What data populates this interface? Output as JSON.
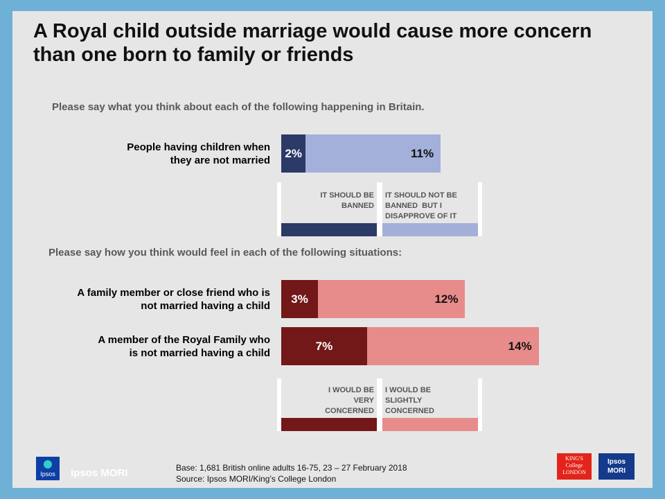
{
  "title": "A Royal child outside marriage would cause more concern than one born to family or friends",
  "chart_data": [
    {
      "type": "bar",
      "orientation": "horizontal",
      "stacked": true,
      "question": "Please say what you think about each of the following happening in Britain.",
      "categories": [
        "People having children when\nthey are not married"
      ],
      "series": [
        {
          "name": "IT SHOULD BE BANNED",
          "values": [
            2
          ],
          "labels": [
            "2%"
          ],
          "color": "#2b3a66"
        },
        {
          "name": "IT SHOULD NOT BE BANNED  BUT I DISAPPROVE OF IT",
          "values": [
            11
          ],
          "labels": [
            "11%"
          ],
          "color": "#a2b0da"
        }
      ],
      "legend": {
        "items": [
          "IT SHOULD BE\nBANNED",
          "IT SHOULD NOT BE\nBANNED  BUT I\nDISAPPROVE OF IT"
        ],
        "placement": "bottom"
      }
    },
    {
      "type": "bar",
      "orientation": "horizontal",
      "stacked": true,
      "question": "Please say how you think would feel in each of the following situations:",
      "categories": [
        "A family member or close friend who is\nnot married having a child",
        "A member of the Royal Family who\nis not married having a child"
      ],
      "series": [
        {
          "name": "I WOULD BE VERY CONCERNED",
          "values": [
            3,
            7
          ],
          "labels": [
            "3%",
            "7%"
          ],
          "color": "#721818"
        },
        {
          "name": "I WOULD BE SLIGHTLY CONCERNED",
          "values": [
            12,
            14
          ],
          "labels": [
            "12%",
            "14%"
          ],
          "color": "#e88b8b"
        }
      ],
      "legend": {
        "items": [
          "I WOULD BE\nVERY\nCONCERNED",
          "I WOULD BE\nSLIGHTLY\nCONCERNED"
        ],
        "placement": "bottom"
      }
    }
  ],
  "footer": {
    "base": "Base: 1,681 British online adults 16-75, 23 – 27 February 2018",
    "source": "Source: Ipsos MORI/King’s College London"
  },
  "logos": {
    "ipsos_small": "Ipsos",
    "ipsos_brand": "Ipsos MORI",
    "kings": "KING'S\nCollege\nLONDON",
    "mori": "Ipsos\nMORI"
  }
}
